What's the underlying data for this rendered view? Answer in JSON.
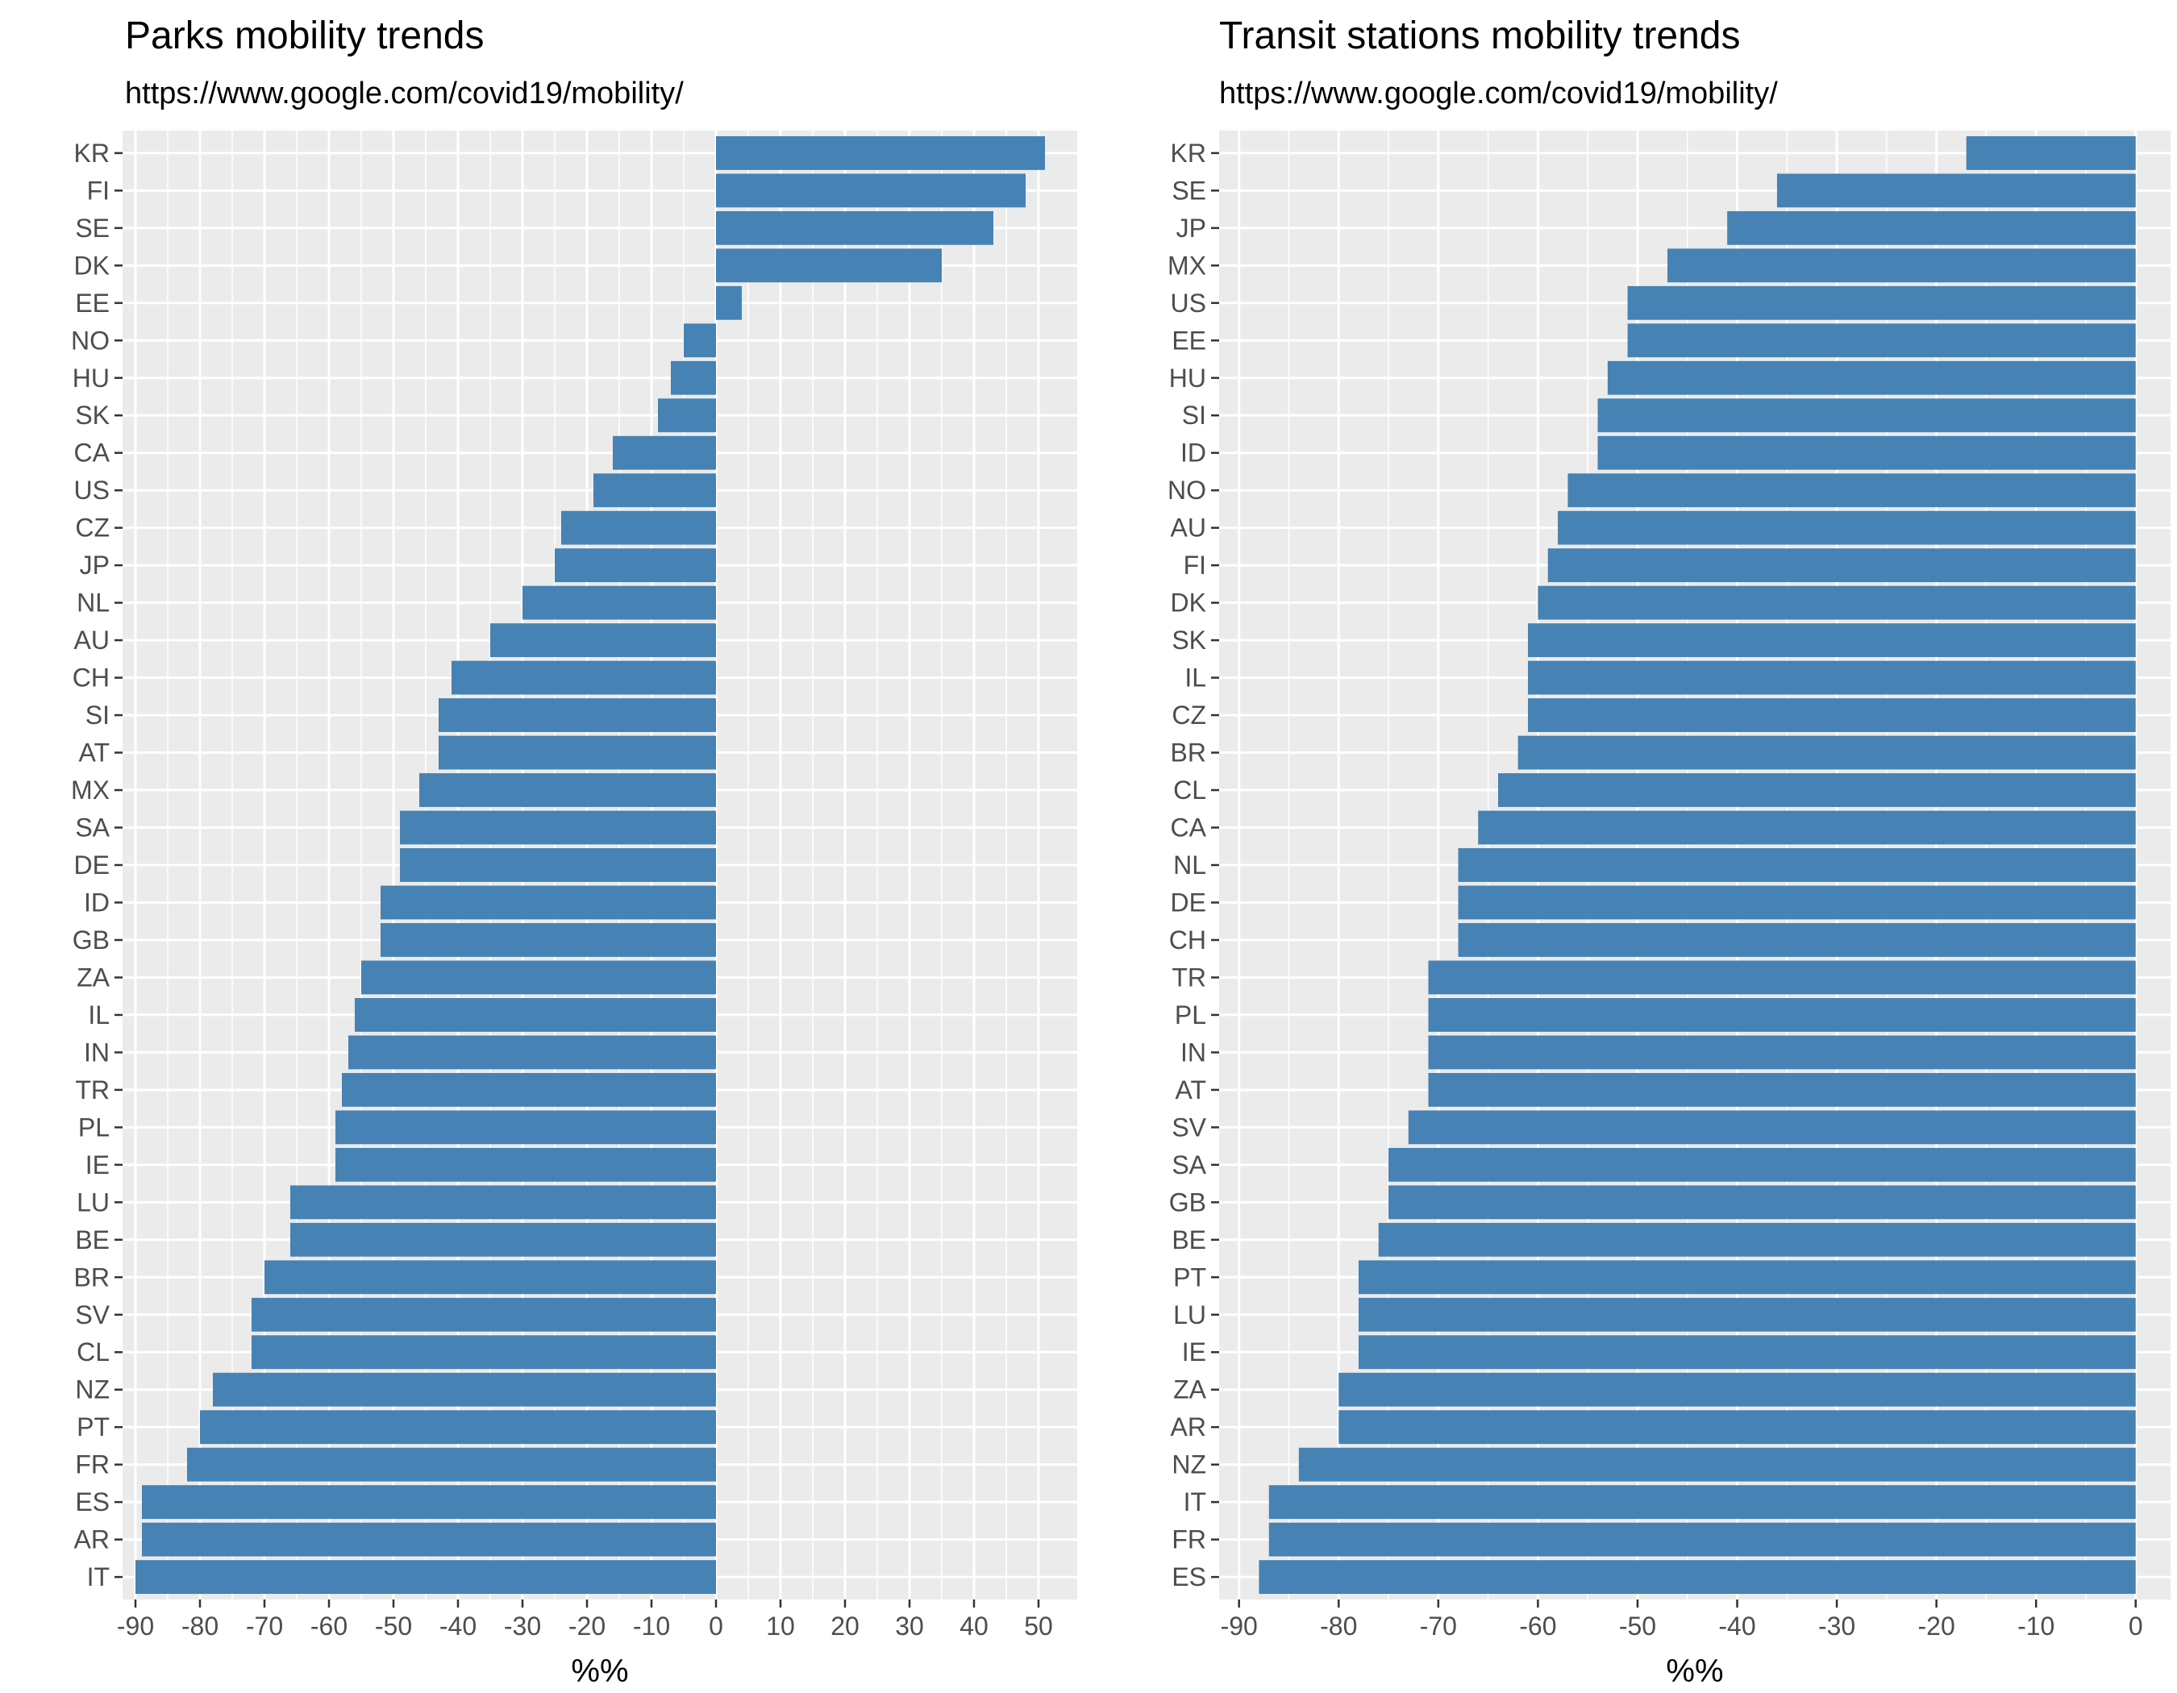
{
  "chart_data": [
    {
      "type": "bar",
      "orientation": "horizontal",
      "title": "Parks mobility trends",
      "subtitle": "https://www.google.com/covid19/mobility/",
      "xlabel": "%%",
      "ylabel": "",
      "xlim": [
        -92,
        56
      ],
      "xticks": [
        -90,
        -80,
        -70,
        -60,
        -50,
        -40,
        -30,
        -20,
        -10,
        0,
        10,
        20,
        30,
        40,
        50
      ],
      "grid": true,
      "bar_color": "#4682b4",
      "panel_color": "#ebebeb",
      "categories": [
        "KR",
        "FI",
        "SE",
        "DK",
        "EE",
        "NO",
        "HU",
        "SK",
        "CA",
        "US",
        "CZ",
        "JP",
        "NL",
        "AU",
        "CH",
        "SI",
        "AT",
        "MX",
        "SA",
        "DE",
        "ID",
        "GB",
        "ZA",
        "IL",
        "IN",
        "TR",
        "PL",
        "IE",
        "LU",
        "BE",
        "BR",
        "SV",
        "CL",
        "NZ",
        "PT",
        "FR",
        "ES",
        "AR",
        "IT"
      ],
      "values": [
        51,
        48,
        43,
        35,
        4,
        -5,
        -7,
        -9,
        -16,
        -19,
        -24,
        -25,
        -30,
        -35,
        -41,
        -43,
        -43,
        -46,
        -49,
        -49,
        -52,
        -52,
        -55,
        -56,
        -57,
        -58,
        -59,
        -59,
        -66,
        -66,
        -70,
        -72,
        -72,
        -78,
        -80,
        -82,
        -89,
        -89,
        -90
      ]
    },
    {
      "type": "bar",
      "orientation": "horizontal",
      "title": "Transit stations mobility trends",
      "subtitle": "https://www.google.com/covid19/mobility/",
      "xlabel": "%%",
      "ylabel": "",
      "xlim": [
        -92,
        3.5
      ],
      "xticks": [
        -90,
        -80,
        -70,
        -60,
        -50,
        -40,
        -30,
        -20,
        -10,
        0
      ],
      "grid": true,
      "bar_color": "#4682b4",
      "panel_color": "#ebebeb",
      "categories": [
        "KR",
        "SE",
        "JP",
        "MX",
        "US",
        "EE",
        "HU",
        "SI",
        "ID",
        "NO",
        "AU",
        "FI",
        "DK",
        "SK",
        "IL",
        "CZ",
        "BR",
        "CL",
        "CA",
        "NL",
        "DE",
        "CH",
        "TR",
        "PL",
        "IN",
        "AT",
        "SV",
        "SA",
        "GB",
        "BE",
        "PT",
        "LU",
        "IE",
        "ZA",
        "AR",
        "NZ",
        "IT",
        "FR",
        "ES"
      ],
      "values": [
        -17,
        -36,
        -41,
        -47,
        -51,
        -51,
        -53,
        -54,
        -54,
        -57,
        -58,
        -59,
        -60,
        -61,
        -61,
        -61,
        -62,
        -64,
        -66,
        -68,
        -68,
        -68,
        -71,
        -71,
        -71,
        -71,
        -73,
        -75,
        -75,
        -76,
        -78,
        -78,
        -78,
        -80,
        -80,
        -84,
        -87,
        -87,
        -88
      ]
    }
  ]
}
